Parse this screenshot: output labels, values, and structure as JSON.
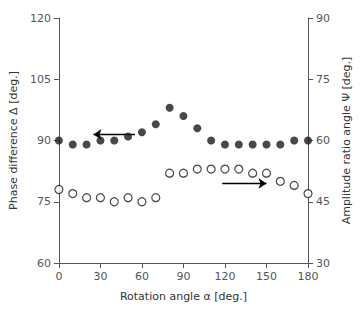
{
  "chart_data": {
    "type": "scatter",
    "x": [
      0,
      10,
      20,
      30,
      40,
      50,
      60,
      70,
      80,
      90,
      100,
      110,
      120,
      130,
      140,
      150,
      160,
      170,
      180
    ],
    "series": [
      {
        "values": [
          90,
          89,
          89,
          90,
          90,
          91,
          92,
          94,
          98,
          96,
          93,
          90,
          89,
          89,
          89,
          89,
          89,
          90,
          90
        ],
        "axis": "y",
        "color": "#1a1a1a",
        "marker": "filled_circle"
      },
      {
        "values": [
          48,
          47,
          46,
          46,
          45,
          46,
          45,
          46,
          52,
          52,
          53,
          53,
          53,
          53,
          52,
          52,
          50,
          49,
          47
        ],
        "axis": "y2",
        "color": "#1a1a1a",
        "marker": "open_circle"
      }
    ],
    "xlabel": "Rotation angle α [deg.]",
    "ylabel": "Phase difference Δ [deg.]",
    "y2label": "Amplitude ratio angle Ψ [deg.]",
    "xlim": [
      0,
      180
    ],
    "xticks": [
      0,
      30,
      60,
      90,
      120,
      150,
      180
    ],
    "ylim": [
      60,
      120
    ],
    "yticks": [
      60,
      75,
      90,
      105,
      120
    ],
    "y2lim": [
      30,
      90
    ],
    "y2ticks": [
      30,
      45,
      60,
      75,
      90
    ],
    "annotations": [
      {
        "type": "arrow",
        "x": [
          55,
          25
        ],
        "y": 91.5
      },
      {
        "type": "arrow",
        "x": [
          118,
          150
        ],
        "y": 79.5
      }
    ],
    "grid": false,
    "legend": false
  }
}
